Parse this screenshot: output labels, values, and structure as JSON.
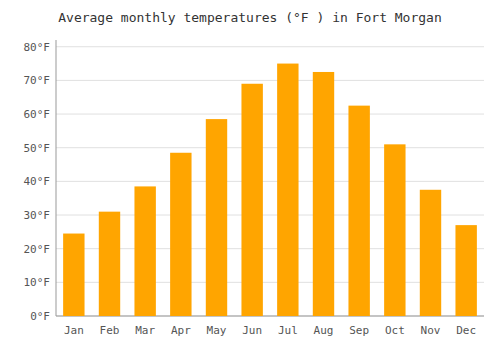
{
  "chart_data": {
    "type": "bar",
    "title": "Average monthly temperatures (°F ) in Fort Morgan",
    "categories": [
      "Jan",
      "Feb",
      "Mar",
      "Apr",
      "May",
      "Jun",
      "Jul",
      "Aug",
      "Sep",
      "Oct",
      "Nov",
      "Dec"
    ],
    "values": [
      24.5,
      31.0,
      38.5,
      48.5,
      58.5,
      69.0,
      75.0,
      72.5,
      62.5,
      51.0,
      37.5,
      27.0
    ],
    "color": "#FFA500",
    "ylim": [
      0,
      82
    ],
    "yticks": [
      {
        "value": 0,
        "label": "0°F"
      },
      {
        "value": 10,
        "label": "10°F"
      },
      {
        "value": 20,
        "label": "20°F"
      },
      {
        "value": 30,
        "label": "30°F"
      },
      {
        "value": 40,
        "label": "40°F"
      },
      {
        "value": 50,
        "label": "50°F"
      },
      {
        "value": 60,
        "label": "60°F"
      },
      {
        "value": 70,
        "label": "70°F"
      },
      {
        "value": 80,
        "label": "80°F"
      }
    ],
    "grid": true
  }
}
